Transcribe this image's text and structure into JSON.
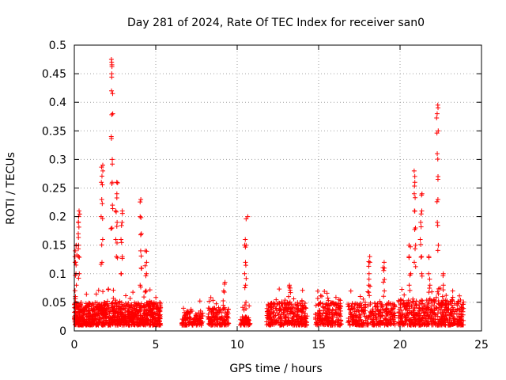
{
  "chart_data": {
    "type": "scatter",
    "title": "Day 281 of 2024, Rate Of TEC Index for receiver san0",
    "xlabel": "GPS time / hours",
    "ylabel": "ROTI / TECUs",
    "xlim": [
      0,
      25
    ],
    "ylim": [
      0,
      0.5
    ],
    "grid": true,
    "marker": "+",
    "series_color": "#ff0000",
    "x_ticks": [
      0,
      5,
      10,
      15,
      20,
      25
    ],
    "x_tick_labels": [
      "0",
      "5",
      "10",
      "15",
      "20",
      "25"
    ],
    "y_ticks": [
      0,
      0.05,
      0.1,
      0.15,
      0.2,
      0.25,
      0.3,
      0.35,
      0.4,
      0.45,
      0.5
    ],
    "y_tick_labels": [
      "0",
      "0.05",
      "0.1",
      "0.15",
      "0.2",
      "0.25",
      "0.3",
      "0.35",
      "0.4",
      "0.45",
      "0.5"
    ],
    "clusters": [
      {
        "x_range": [
          0.0,
          5.3
        ],
        "base": [
          0.01,
          0.05
        ],
        "density": 900
      },
      {
        "x_range": [
          6.6,
          7.9
        ],
        "base": [
          0.01,
          0.035
        ],
        "density": 120
      },
      {
        "x_range": [
          8.2,
          9.5
        ],
        "base": [
          0.01,
          0.04
        ],
        "density": 140
      },
      {
        "x_range": [
          10.2,
          10.8
        ],
        "base": [
          0.01,
          0.025
        ],
        "density": 60
      },
      {
        "x_range": [
          11.8,
          14.3
        ],
        "base": [
          0.01,
          0.05
        ],
        "density": 300
      },
      {
        "x_range": [
          14.8,
          16.4
        ],
        "base": [
          0.01,
          0.05
        ],
        "density": 200
      },
      {
        "x_range": [
          16.8,
          19.7
        ],
        "base": [
          0.01,
          0.05
        ],
        "density": 300
      },
      {
        "x_range": [
          19.9,
          23.9
        ],
        "base": [
          0.01,
          0.055
        ],
        "density": 500
      }
    ],
    "peaks": [
      {
        "x": 0.1,
        "values": [
          0.06,
          0.08,
          0.1,
          0.12,
          0.13,
          0.14,
          0.15
        ]
      },
      {
        "x": 0.3,
        "values": [
          0.1,
          0.13,
          0.15,
          0.17,
          0.19,
          0.2,
          0.21
        ]
      },
      {
        "x": 1.7,
        "values": [
          0.12,
          0.16,
          0.2,
          0.23,
          0.26,
          0.28,
          0.29
        ]
      },
      {
        "x": 2.3,
        "values": [
          0.18,
          0.22,
          0.26,
          0.3,
          0.34,
          0.38,
          0.42,
          0.45,
          0.47,
          0.475
        ]
      },
      {
        "x": 2.6,
        "values": [
          0.13,
          0.16,
          0.19,
          0.21,
          0.24,
          0.26
        ]
      },
      {
        "x": 2.9,
        "values": [
          0.1,
          0.13,
          0.16,
          0.19,
          0.21
        ]
      },
      {
        "x": 4.1,
        "values": [
          0.08,
          0.11,
          0.14,
          0.17,
          0.2,
          0.23
        ]
      },
      {
        "x": 4.4,
        "values": [
          0.07,
          0.1,
          0.12,
          0.14
        ]
      },
      {
        "x": 9.2,
        "values": [
          0.07,
          0.085
        ]
      },
      {
        "x": 10.5,
        "values": [
          0.05,
          0.08,
          0.1,
          0.12,
          0.15,
          0.16
        ]
      },
      {
        "x": 10.6,
        "values": [
          0.2
        ]
      },
      {
        "x": 13.2,
        "values": [
          0.06,
          0.075,
          0.08
        ]
      },
      {
        "x": 18.1,
        "values": [
          0.08,
          0.1,
          0.12,
          0.13
        ]
      },
      {
        "x": 19.0,
        "values": [
          0.07,
          0.09,
          0.11,
          0.12
        ]
      },
      {
        "x": 20.6,
        "values": [
          0.08,
          0.1,
          0.13,
          0.15
        ]
      },
      {
        "x": 20.9,
        "values": [
          0.12,
          0.15,
          0.18,
          0.21,
          0.24,
          0.26,
          0.28
        ]
      },
      {
        "x": 21.3,
        "values": [
          0.1,
          0.13,
          0.16,
          0.19,
          0.21,
          0.24
        ]
      },
      {
        "x": 21.8,
        "values": [
          0.08,
          0.1,
          0.13
        ]
      },
      {
        "x": 22.3,
        "values": [
          0.15,
          0.19,
          0.23,
          0.27,
          0.31,
          0.35,
          0.38,
          0.395
        ]
      },
      {
        "x": 22.6,
        "values": [
          0.06,
          0.08,
          0.1
        ]
      }
    ]
  }
}
